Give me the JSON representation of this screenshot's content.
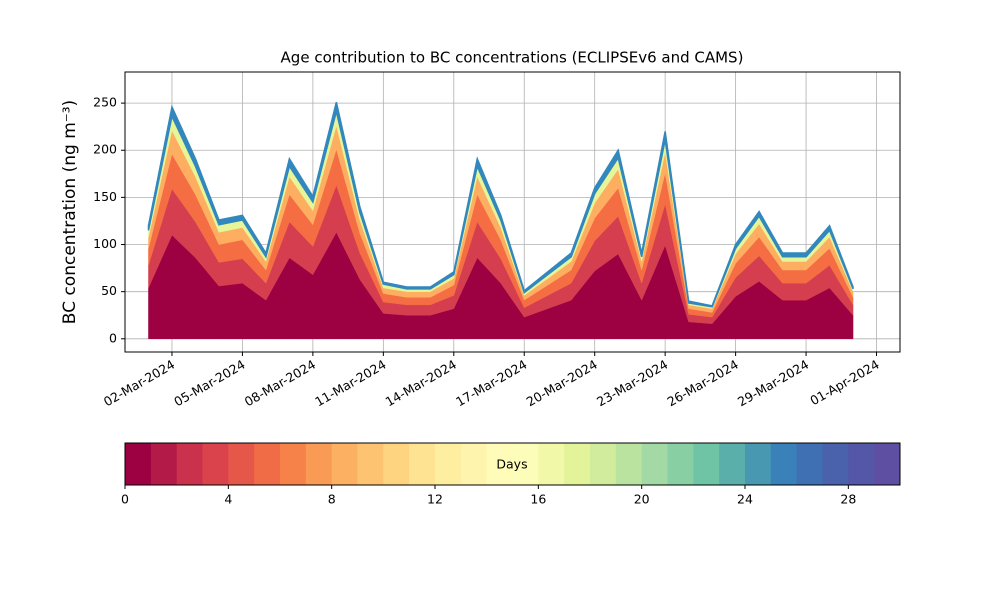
{
  "chart_data": {
    "type": "stacked-area",
    "title": "Age contribution to BC concentrations (ECLIPSEv6 and CAMS)",
    "ylabel": "BC concentration (ng m⁻³)",
    "x": [
      "2024-03-01",
      "2024-03-02",
      "2024-03-03",
      "2024-03-04",
      "2024-03-05",
      "2024-03-06",
      "2024-03-07",
      "2024-03-08",
      "2024-03-09",
      "2024-03-10",
      "2024-03-11",
      "2024-03-12",
      "2024-03-13",
      "2024-03-14",
      "2024-03-15",
      "2024-03-16",
      "2024-03-17",
      "2024-03-18",
      "2024-03-19",
      "2024-03-20",
      "2024-03-21",
      "2024-03-22",
      "2024-03-23",
      "2024-03-24",
      "2024-03-25",
      "2024-03-26",
      "2024-03-27",
      "2024-03-28",
      "2024-03-29",
      "2024-03-30",
      "2024-03-31"
    ],
    "series": [
      {
        "color": "#9e0142",
        "values": [
          54,
          110,
          86,
          56,
          59,
          41,
          86,
          68,
          113,
          63,
          27,
          25,
          25,
          32,
          86,
          59,
          23,
          32,
          41,
          72,
          90,
          41,
          99,
          18,
          16,
          45,
          61,
          41,
          41,
          54,
          25
        ]
      },
      {
        "color": "#d53e4f",
        "values": [
          24,
          49,
          38,
          25,
          26,
          18,
          38,
          30,
          50,
          28,
          12,
          11,
          11,
          14,
          38,
          26,
          10,
          14,
          18,
          32,
          40,
          18,
          44,
          8,
          7,
          20,
          27,
          18,
          18,
          24,
          11
        ]
      },
      {
        "color": "#f46d43",
        "values": [
          18,
          37,
          29,
          19,
          20,
          14,
          29,
          23,
          38,
          21,
          9,
          8,
          8,
          11,
          29,
          20,
          8,
          11,
          14,
          24,
          30,
          14,
          33,
          6,
          5,
          15,
          20,
          14,
          14,
          18,
          8
        ]
      },
      {
        "color": "#fdae61",
        "values": [
          12,
          25,
          19,
          13,
          13,
          9,
          19,
          15,
          25,
          14,
          6,
          6,
          6,
          7,
          19,
          13,
          5,
          7,
          9,
          16,
          20,
          9,
          22,
          4,
          4,
          10,
          14,
          9,
          9,
          12,
          6
        ]
      },
      {
        "color": "#e6f598",
        "values": [
          7,
          15,
          11,
          8,
          8,
          5,
          11,
          9,
          15,
          8,
          4,
          3,
          3,
          4,
          11,
          8,
          3,
          4,
          5,
          10,
          12,
          5,
          13,
          2,
          2,
          6,
          8,
          5,
          5,
          7,
          3
        ]
      },
      {
        "color": "#3288bd",
        "values": [
          5,
          10,
          8,
          5,
          5,
          4,
          8,
          6,
          10,
          6,
          2,
          2,
          2,
          3,
          8,
          5,
          2,
          3,
          4,
          6,
          8,
          4,
          9,
          2,
          1,
          4,
          5,
          4,
          4,
          5,
          2
        ]
      }
    ],
    "xlim": [
      "2024-02-29",
      "2024-04-02"
    ],
    "xticks": [
      {
        "value": "2024-03-02",
        "label": "02-Mar-2024"
      },
      {
        "value": "2024-03-05",
        "label": "05-Mar-2024"
      },
      {
        "value": "2024-03-08",
        "label": "08-Mar-2024"
      },
      {
        "value": "2024-03-11",
        "label": "11-Mar-2024"
      },
      {
        "value": "2024-03-14",
        "label": "14-Mar-2024"
      },
      {
        "value": "2024-03-17",
        "label": "17-Mar-2024"
      },
      {
        "value": "2024-03-20",
        "label": "20-Mar-2024"
      },
      {
        "value": "2024-03-23",
        "label": "23-Mar-2024"
      },
      {
        "value": "2024-03-26",
        "label": "26-Mar-2024"
      },
      {
        "value": "2024-03-29",
        "label": "29-Mar-2024"
      },
      {
        "value": "2024-04-01",
        "label": "01-Apr-2024"
      }
    ],
    "ylim": [
      -14,
      283
    ],
    "yticks": [
      0,
      50,
      100,
      150,
      200,
      250
    ],
    "grid": true,
    "colorbar": {
      "label": "Days",
      "lim": [
        0,
        30
      ],
      "ticks": [
        0,
        4,
        8,
        12,
        16,
        20,
        24,
        28
      ],
      "colors": [
        "#9e0142",
        "#b31a48",
        "#c9314d",
        "#da434c",
        "#e55749",
        "#ef6c47",
        "#f68249",
        "#f99a55",
        "#fcb062",
        "#fdc371",
        "#fed481",
        "#fee492",
        "#feee9f",
        "#fff4ad",
        "#fffbb8",
        "#fbfdb8",
        "#f1f9a9",
        "#e3f399",
        "#d1ec9c",
        "#bae3a0",
        "#a2d9a4",
        "#88cfa4",
        "#6fc4a5",
        "#5aafaa",
        "#4898b2",
        "#3a80b9",
        "#3f70b3",
        "#4a62ac",
        "#5456a7",
        "#5e4fa2"
      ]
    }
  }
}
